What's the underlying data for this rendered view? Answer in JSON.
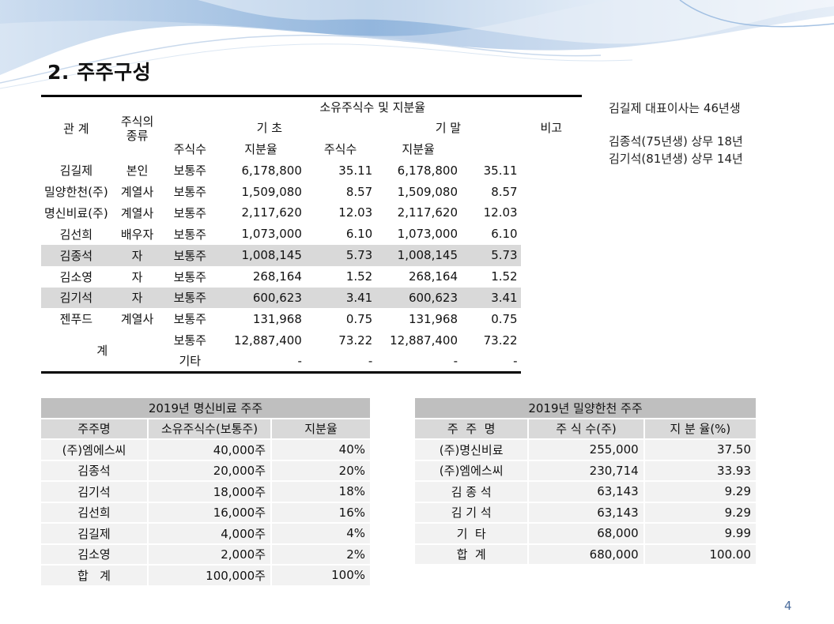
{
  "slide": {
    "title": "2. 주주구성",
    "page_number": "4"
  },
  "main_table": {
    "headers": {
      "relation": "관 계",
      "share_type_line1": "주식의",
      "share_type_line2": "종류",
      "owned_group": "소유주식수 및 지분율",
      "period_begin": "기 초",
      "period_end": "기 말",
      "remarks": "비고",
      "begin_shares": "주식수",
      "begin_ratio": "지분율",
      "end_shares": "주식수",
      "end_ratio": "지분율"
    },
    "rows": [
      {
        "name": "김길제",
        "relation": "본인",
        "type": "보통주",
        "begin_shares": "6,178,800",
        "begin_ratio": "35.11",
        "end_shares": "6,178,800",
        "end_ratio": "35.11"
      },
      {
        "name": "밀양한천(주)",
        "relation": "계열사",
        "type": "보통주",
        "begin_shares": "1,509,080",
        "begin_ratio": "8.57",
        "end_shares": "1,509,080",
        "end_ratio": "8.57"
      },
      {
        "name": "명신비료(주)",
        "relation": "계열사",
        "type": "보통주",
        "begin_shares": "2,117,620",
        "begin_ratio": "12.03",
        "end_shares": "2,117,620",
        "end_ratio": "12.03"
      },
      {
        "name": "김선희",
        "relation": "배우자",
        "type": "보통주",
        "begin_shares": "1,073,000",
        "begin_ratio": "6.10",
        "end_shares": "1,073,000",
        "end_ratio": "6.10"
      },
      {
        "name": "김종석",
        "relation": "자",
        "type": "보통주",
        "begin_shares": "1,008,145",
        "begin_ratio": "5.73",
        "end_shares": "1,008,145",
        "end_ratio": "5.73"
      },
      {
        "name": "김소영",
        "relation": "자",
        "type": "보통주",
        "begin_shares": "268,164",
        "begin_ratio": "1.52",
        "end_shares": "268,164",
        "end_ratio": "1.52"
      },
      {
        "name": "김기석",
        "relation": "자",
        "type": "보통주",
        "begin_shares": "600,623",
        "begin_ratio": "3.41",
        "end_shares": "600,623",
        "end_ratio": "3.41"
      },
      {
        "name": "젠푸드",
        "relation": "계열사",
        "type": "보통주",
        "begin_shares": "131,968",
        "begin_ratio": "0.75",
        "end_shares": "131,968",
        "end_ratio": "0.75"
      }
    ],
    "total": {
      "label": "계",
      "common": {
        "type": "보통주",
        "begin_shares": "12,887,400",
        "begin_ratio": "73.22",
        "end_shares": "12,887,400",
        "end_ratio": "73.22"
      },
      "other": {
        "type": "기타",
        "begin_shares": "-",
        "begin_ratio": "-",
        "end_shares": "-",
        "end_ratio": "-"
      }
    }
  },
  "notes": {
    "line1": "김길제 대표이사는 46년생",
    "line2": "김종석(75년생) 상무 18년",
    "line3": "김기석(81년생) 상무 14년"
  },
  "table_myungshin": {
    "title": "2019년 명신비료 주주",
    "headers": {
      "name": "주주명",
      "shares": "소유주식수(보통주)",
      "ratio": "지분율"
    },
    "rows": [
      {
        "name": "(주)엠에스씨",
        "shares": "40,000주",
        "ratio": "40%"
      },
      {
        "name": "김종석",
        "shares": "20,000주",
        "ratio": "20%"
      },
      {
        "name": "김기석",
        "shares": "18,000주",
        "ratio": "18%"
      },
      {
        "name": "김선희",
        "shares": "16,000주",
        "ratio": "16%"
      },
      {
        "name": "김길제",
        "shares": "4,000주",
        "ratio": "4%"
      },
      {
        "name": "김소영",
        "shares": "2,000주",
        "ratio": "2%"
      },
      {
        "name": "합   계",
        "shares": "100,000주",
        "ratio": "100%"
      }
    ]
  },
  "table_milyang": {
    "title": "2019년 밀양한천 주주",
    "headers": {
      "name": "주  주  명",
      "shares": "주 식 수(주)",
      "ratio": "지 분 율(%)"
    },
    "rows": [
      {
        "name": "(주)명신비료",
        "shares": "255,000",
        "ratio": "37.50"
      },
      {
        "name": "(주)엠에스씨",
        "shares": "230,714",
        "ratio": "33.93"
      },
      {
        "name": "김 종 석",
        "shares": "63,143",
        "ratio": "9.29"
      },
      {
        "name": "김 기 석",
        "shares": "63,143",
        "ratio": "9.29"
      },
      {
        "name": "기  타",
        "shares": "68,000",
        "ratio": "9.99"
      },
      {
        "name": "합  계",
        "shares": "680,000",
        "ratio": "100.00"
      }
    ]
  },
  "colors": {
    "shaded_row": "#d9d9d9",
    "title_bar": "#bfbfbf",
    "cell_bg": "#f2f2f2",
    "wave_blue": "#6e9ed1",
    "page_number": "#4a6c9c"
  }
}
